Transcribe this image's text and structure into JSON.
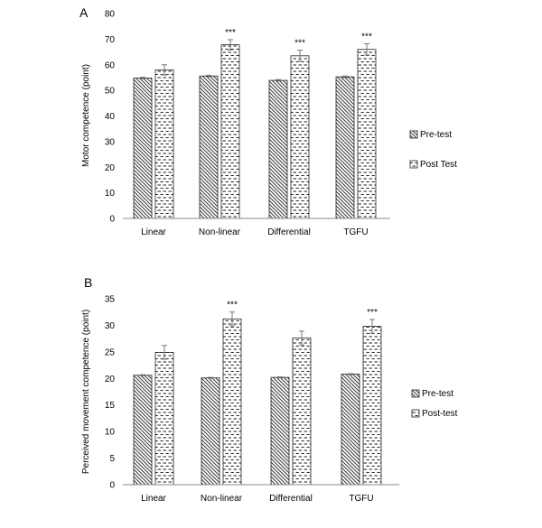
{
  "chart_data": [
    {
      "panel_label": "A",
      "type": "bar",
      "categories": [
        "Linear",
        "Non-linear",
        "Differential",
        "TGFU"
      ],
      "ylabel": "Motor competence (point)",
      "ylim": [
        0,
        80
      ],
      "yticks": [
        0,
        10,
        20,
        30,
        40,
        50,
        60,
        70,
        80
      ],
      "grid": false,
      "legend_position": "right",
      "series": [
        {
          "name": "Pre-test",
          "values": [
            54.8,
            55.6,
            53.9,
            55.3
          ],
          "errors": [
            0.3,
            0.3,
            0.3,
            0.3
          ],
          "pattern": "diagonal-hatch"
        },
        {
          "name": "Post Test",
          "values": [
            58.0,
            67.8,
            63.5,
            66.0
          ],
          "errors": [
            2.0,
            2.0,
            2.2,
            2.2
          ],
          "pattern": "dashes"
        }
      ],
      "annotations": [
        {
          "series": 1,
          "category": 1,
          "text": "***"
        },
        {
          "series": 1,
          "category": 2,
          "text": "***"
        },
        {
          "series": 1,
          "category": 3,
          "text": "***"
        }
      ]
    },
    {
      "panel_label": "B",
      "type": "bar",
      "categories": [
        "Linear",
        "Non-linear",
        "Differential",
        "TGFU"
      ],
      "ylabel": "Perceived movement competence (point)",
      "ylim": [
        0,
        35
      ],
      "yticks": [
        0,
        5,
        10,
        15,
        20,
        25,
        30,
        35
      ],
      "grid": false,
      "legend_position": "right",
      "series": [
        {
          "name": "Pre-test",
          "values": [
            20.6,
            20.1,
            20.2,
            20.8
          ],
          "errors": [
            0.1,
            0.1,
            0.1,
            0.1
          ],
          "pattern": "diagonal-hatch"
        },
        {
          "name": "Post-test",
          "values": [
            24.9,
            31.2,
            27.6,
            29.8
          ],
          "errors": [
            1.3,
            1.3,
            1.3,
            1.3
          ],
          "pattern": "dashes"
        }
      ],
      "annotations": [
        {
          "series": 1,
          "category": 1,
          "text": "***"
        },
        {
          "series": 1,
          "category": 3,
          "text": "***"
        }
      ]
    }
  ]
}
